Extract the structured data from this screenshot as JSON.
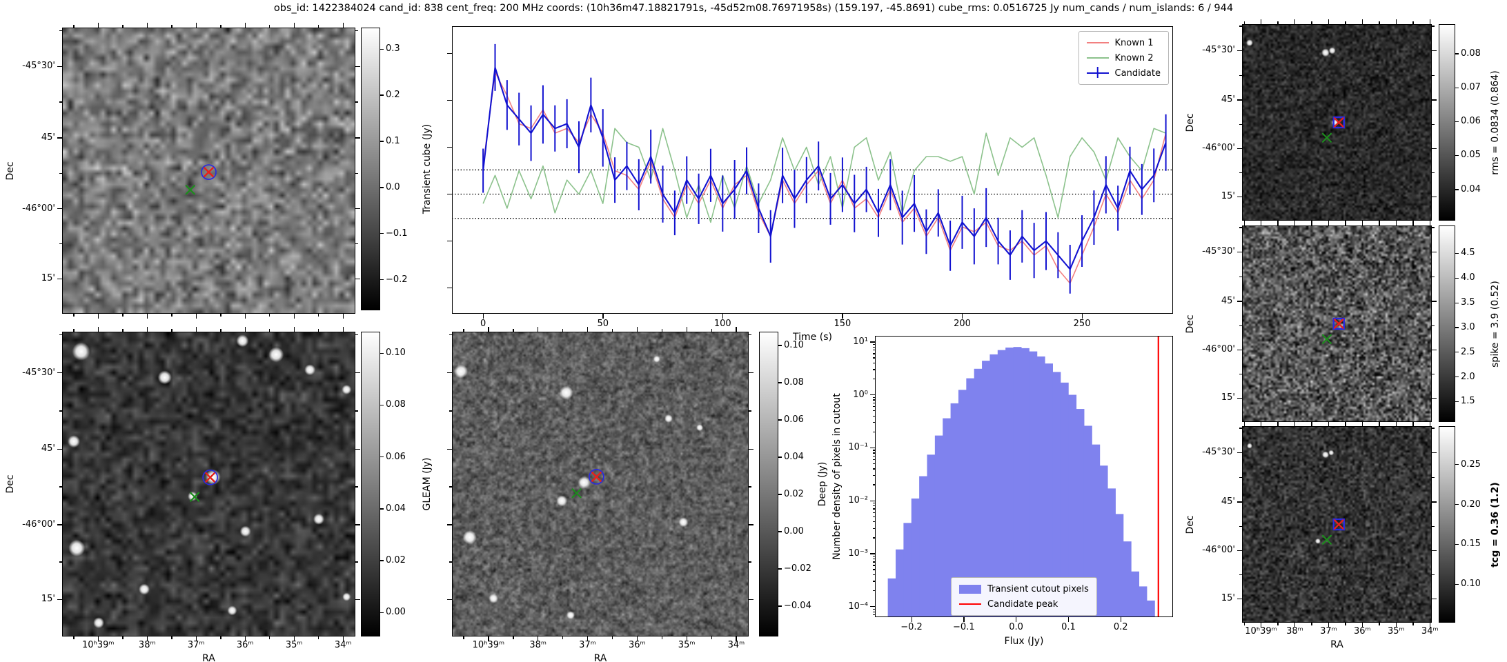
{
  "title": "obs_id: 1422384024 cand_id: 838 cent_freq: 200 MHz coords: (10h36m47.18821791s, -45d52m08.76971958s) (159.197, -45.8691) cube_rms: 0.0516725 Jy num_cands / num_islands: 6 / 944",
  "axes": {
    "dec_label": "Dec",
    "ra_label": "RA",
    "dec_ticks": {
      "labels": [
        "-45°30'",
        "45'",
        "-46°00'",
        "15'"
      ],
      "fracs": [
        0.135,
        0.385,
        0.633,
        0.878
      ]
    },
    "ra_ticks_wide": {
      "labels": [
        "10ʰ39ᵐ",
        "38ᵐ",
        "37ᵐ",
        "36ᵐ",
        "35ᵐ",
        "34ᵐ"
      ],
      "fracs": [
        0.123,
        0.29,
        0.457,
        0.624,
        0.791,
        0.958
      ]
    },
    "ra_ticks_narrow": {
      "labels": [
        "10ʰ39ᵐ",
        "38ᵐ",
        "37ᵐ",
        "36ᵐ",
        "35ᵐ",
        "34ᵐ"
      ],
      "fracs": [
        0.1,
        0.278,
        0.456,
        0.634,
        0.812,
        0.99
      ]
    }
  },
  "panels": {
    "cube": {
      "ylabel": "Dec",
      "dec_labels": true,
      "ra_labels": false,
      "xlabel": "",
      "markers": {
        "candidate": {
          "x": 0.5,
          "y": 0.505,
          "shape": "circle"
        },
        "known": {
          "x": 0.437,
          "y": 0.567
        }
      },
      "colorbar": {
        "label": "Transient cube (Jy)",
        "bold": false,
        "tick_labels": [
          "0.3",
          "0.2",
          "0.1",
          "0.0",
          "−0.1",
          "−0.2"
        ],
        "tick_values": [
          0.3,
          0.2,
          0.1,
          0.0,
          -0.1,
          -0.2
        ],
        "vmin": -0.265,
        "vmax": 0.345
      }
    },
    "gleam": {
      "ylabel": "Dec",
      "dec_labels": true,
      "ra_labels": true,
      "xlabel": "RA",
      "markers": {
        "candidate": {
          "x": 0.505,
          "y": 0.478,
          "shape": "circle"
        },
        "known": {
          "x": 0.452,
          "y": 0.542
        }
      },
      "colorbar": {
        "label": "GLEAM (Jy)",
        "bold": false,
        "tick_labels": [
          "0.10",
          "0.08",
          "0.06",
          "0.04",
          "0.02",
          "0.00"
        ],
        "tick_values": [
          0.1,
          0.08,
          0.06,
          0.04,
          0.02,
          0.0
        ],
        "vmin": -0.009,
        "vmax": 0.108
      }
    },
    "deep": {
      "ylabel": "",
      "dec_labels": false,
      "ra_labels": true,
      "xlabel": "RA",
      "markers": {
        "candidate": {
          "x": 0.487,
          "y": 0.476,
          "shape": "circle"
        },
        "known": {
          "x": 0.42,
          "y": 0.53
        }
      },
      "colorbar": {
        "label": "Deep (Jy)",
        "bold": false,
        "tick_labels": [
          "0.10",
          "0.08",
          "0.06",
          "0.04",
          "0.02",
          "0.00",
          "−0.02",
          "−0.04"
        ],
        "tick_values": [
          0.1,
          0.08,
          0.06,
          0.04,
          0.02,
          0.0,
          -0.02,
          -0.04
        ],
        "vmin": -0.056,
        "vmax": 0.107
      }
    },
    "rms": {
      "ylabel": "Dec",
      "dec_labels": true,
      "ra_labels": false,
      "xlabel": "",
      "markers": {
        "candidate": {
          "x": 0.51,
          "y": 0.5,
          "shape": "square"
        },
        "known": {
          "x": 0.447,
          "y": 0.578
        }
      },
      "colorbar": {
        "label": "rms = 0.0834 (0.864)",
        "bold": false,
        "tick_labels": [
          "0.08",
          "0.07",
          "0.06",
          "0.05",
          "0.04"
        ],
        "tick_values": [
          0.08,
          0.07,
          0.06,
          0.05,
          0.04
        ],
        "vmin": 0.031,
        "vmax": 0.0885
      }
    },
    "spike": {
      "ylabel": "Dec",
      "dec_labels": true,
      "ra_labels": false,
      "xlabel": "",
      "markers": {
        "candidate": {
          "x": 0.51,
          "y": 0.5,
          "shape": "square"
        },
        "known": {
          "x": 0.447,
          "y": 0.578
        }
      },
      "colorbar": {
        "label": "spike = 3.9 (0.52)",
        "bold": false,
        "tick_labels": [
          "4.5",
          "4.0",
          "3.5",
          "3.0",
          "2.5",
          "2.0",
          "1.5"
        ],
        "tick_values": [
          4.5,
          4.0,
          3.5,
          3.0,
          2.5,
          2.0,
          1.5
        ],
        "vmin": 1.1,
        "vmax": 5.05
      }
    },
    "tcg": {
      "ylabel": "Dec",
      "dec_labels": true,
      "ra_labels": true,
      "xlabel": "RA",
      "markers": {
        "candidate": {
          "x": 0.51,
          "y": 0.5,
          "shape": "square"
        },
        "known": {
          "x": 0.447,
          "y": 0.578
        }
      },
      "colorbar": {
        "label": "tcg = 0.36 (1.2)",
        "bold": true,
        "tick_labels": [
          "0.25",
          "0.20",
          "0.15",
          "0.10"
        ],
        "tick_values": [
          0.25,
          0.2,
          0.15,
          0.1
        ],
        "vmin": 0.053,
        "vmax": 0.297
      }
    }
  },
  "chart_data": [
    {
      "id": "lightcurve",
      "type": "line",
      "title": "",
      "xlabel": "Time (s)",
      "ylabel": "",
      "xlim": [
        -13,
        288
      ],
      "ylim": [
        -0.255,
        0.358
      ],
      "xticks": [
        0,
        50,
        100,
        150,
        200,
        250
      ],
      "yticks": [
        0.3,
        0.2,
        0.1,
        0.0,
        -0.1,
        -0.2
      ],
      "hlines": [
        0.0516725,
        0.0,
        -0.0516725
      ],
      "grid": false,
      "legend_position": "upper right",
      "x": [
        0,
        5,
        10,
        15,
        20,
        25,
        30,
        35,
        40,
        45,
        50,
        55,
        60,
        65,
        70,
        75,
        80,
        85,
        90,
        95,
        100,
        105,
        110,
        115,
        120,
        125,
        130,
        135,
        140,
        145,
        150,
        155,
        160,
        165,
        170,
        175,
        180,
        185,
        190,
        195,
        200,
        205,
        210,
        215,
        220,
        225,
        230,
        235,
        240,
        245,
        250,
        255,
        260,
        265,
        270,
        275,
        280,
        285
      ],
      "series": [
        {
          "name": "Known 1",
          "color": "#f28080",
          "values": [
            0.06,
            0.26,
            0.21,
            0.15,
            0.14,
            0.18,
            0.13,
            0.14,
            0.11,
            0.17,
            0.13,
            0.05,
            0.04,
            0.01,
            0.07,
            -0.01,
            -0.05,
            0.02,
            -0.02,
            0.03,
            -0.03,
            0.02,
            0.04,
            -0.04,
            -0.09,
            0.03,
            -0.02,
            0.02,
            0.05,
            -0.02,
            0.03,
            -0.03,
            -0.01,
            -0.05,
            0.01,
            -0.06,
            -0.03,
            -0.09,
            -0.05,
            -0.12,
            -0.07,
            -0.08,
            -0.06,
            -0.11,
            -0.12,
            -0.1,
            -0.13,
            -0.11,
            -0.16,
            -0.19,
            -0.13,
            -0.07,
            0.0,
            -0.04,
            0.03,
            -0.01,
            0.03,
            0.13
          ]
        },
        {
          "name": "Known 2",
          "color": "#8cc28c",
          "values": [
            -0.02,
            0.04,
            -0.03,
            0.05,
            -0.01,
            0.06,
            -0.04,
            0.03,
            0.0,
            0.05,
            -0.02,
            0.14,
            0.11,
            0.1,
            0.03,
            0.14,
            0.05,
            -0.05,
            0.02,
            -0.06,
            0.04,
            -0.03,
            0.06,
            -0.02,
            0.03,
            0.12,
            0.05,
            0.1,
            0.02,
            0.08,
            -0.03,
            0.1,
            0.12,
            0.03,
            0.09,
            -0.04,
            0.05,
            0.08,
            0.08,
            0.07,
            0.08,
            0.0,
            0.13,
            0.04,
            0.12,
            0.1,
            0.12,
            0.04,
            -0.05,
            0.08,
            0.12,
            0.09,
            0.03,
            0.12,
            0.08,
            0.05,
            0.14,
            0.13
          ]
        },
        {
          "name": "Candidate",
          "color": "#1212d0",
          "yerr": 0.055,
          "values": [
            0.05,
            0.27,
            0.19,
            0.16,
            0.13,
            0.17,
            0.14,
            0.15,
            0.1,
            0.19,
            0.12,
            0.03,
            0.06,
            0.02,
            0.08,
            0.0,
            -0.04,
            0.03,
            -0.01,
            0.04,
            -0.02,
            0.01,
            0.05,
            -0.03,
            -0.09,
            0.04,
            -0.01,
            0.03,
            0.06,
            -0.01,
            0.02,
            -0.02,
            0.01,
            -0.04,
            0.02,
            -0.05,
            -0.02,
            -0.08,
            -0.04,
            -0.11,
            -0.06,
            -0.09,
            -0.05,
            -0.1,
            -0.13,
            -0.09,
            -0.12,
            -0.1,
            -0.13,
            -0.16,
            -0.1,
            -0.05,
            0.02,
            -0.03,
            0.05,
            0.01,
            0.04,
            0.11
          ]
        }
      ]
    },
    {
      "id": "pixel_histogram",
      "type": "bar",
      "title": "",
      "xlabel": "Flux (Jy)",
      "ylabel": "Number density of pixels in cutout",
      "yscale": "log",
      "xlim": [
        -0.27,
        0.3
      ],
      "ylim": [
        6.3e-05,
        13
      ],
      "xticks": [
        -0.2,
        -0.1,
        0.0,
        0.1,
        0.2
      ],
      "xtick_labels": [
        "−0.2",
        "−0.1",
        "0.0",
        "0.1",
        "0.2"
      ],
      "ytick_values": [
        10,
        1,
        0.1,
        0.01,
        0.001,
        0.0001
      ],
      "ytick_labels": [
        "10¹",
        "10⁰",
        "10⁻¹",
        "10⁻²",
        "10⁻³",
        "10⁻⁴"
      ],
      "bar_color": "#7f82ee",
      "bin_width": 0.015,
      "bin_centers": [
        -0.2375,
        -0.2225,
        -0.2075,
        -0.1925,
        -0.1775,
        -0.1625,
        -0.1475,
        -0.1325,
        -0.1175,
        -0.1025,
        -0.0875,
        -0.0725,
        -0.0575,
        -0.0425,
        -0.0275,
        -0.0125,
        0.0025,
        0.0175,
        0.0325,
        0.0475,
        0.0625,
        0.0775,
        0.0925,
        0.1075,
        0.1225,
        0.1375,
        0.1525,
        0.1675,
        0.1825,
        0.1975,
        0.2125,
        0.2275,
        0.2425,
        0.2575
      ],
      "values": [
        0.00034,
        0.0012,
        0.0038,
        0.011,
        0.029,
        0.074,
        0.17,
        0.36,
        0.69,
        1.24,
        2.05,
        3.1,
        4.4,
        5.8,
        7.0,
        7.8,
        8.0,
        7.6,
        6.6,
        5.3,
        3.9,
        2.7,
        1.7,
        1.0,
        0.54,
        0.26,
        0.115,
        0.046,
        0.017,
        0.0056,
        0.0017,
        0.00046,
        0.00024,
        0.00013
      ],
      "vline": {
        "x": 0.272,
        "color": "#ff0000"
      },
      "legend": [
        {
          "label": "Transient cutout pixels",
          "type": "patch",
          "color": "#7f82ee"
        },
        {
          "label": "Candidate peak",
          "type": "line",
          "color": "#ff0000"
        }
      ],
      "legend_position": "lower center"
    }
  ]
}
